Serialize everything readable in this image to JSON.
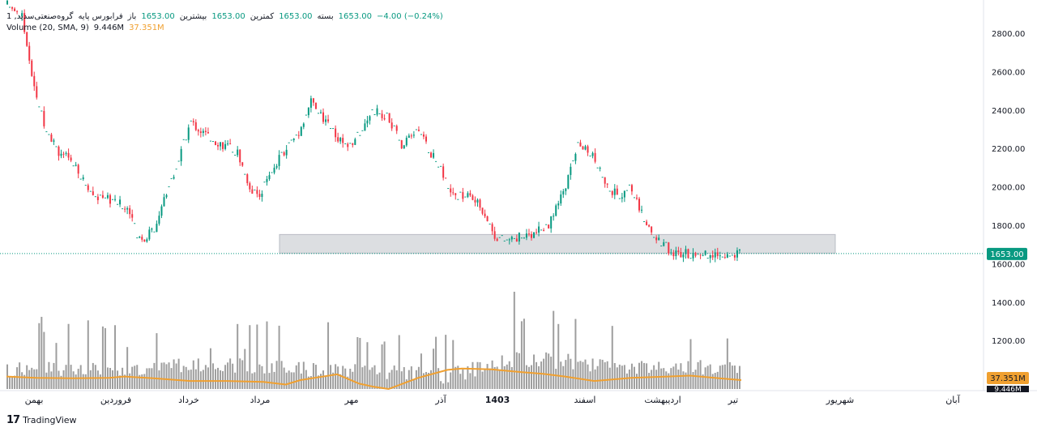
{
  "legend": {
    "symbol": "گروه‌صنعتی‌سدید, 1",
    "exchange": "فرابورس پایه",
    "open_label": "باز",
    "open_value": "1653.00",
    "high_label": "بیشترین",
    "high_value": "1653.00",
    "low_label": "کمترین",
    "low_value": "1653.00",
    "close_label": "بسته",
    "close_value": "1653.00",
    "change": "−4.00 (−0.24%)",
    "volume_label": "Volume (20, SMA, 9)",
    "volume_value": "9.446M",
    "volume_sma_value": "37.351M"
  },
  "brand": {
    "name": "TradingView"
  },
  "colors": {
    "up": "#089981",
    "down": "#f23645",
    "sma": "#f0a030",
    "volume": "#9e9e9e",
    "zone": "#d8dade"
  },
  "chart_data": {
    "type": "candlestick",
    "y_axis_ticks": [
      "2800.00",
      "2600.00",
      "2400.00",
      "2200.00",
      "2000.00",
      "1800.00",
      "1600.00",
      "1400.00",
      "1200.00"
    ],
    "y_tick_values": [
      2800,
      2600,
      2400,
      2200,
      2000,
      1800,
      1600,
      1400,
      1200
    ],
    "ylim": [
      1120,
      2950
    ],
    "last_price_label": "1653.00",
    "last_price": 1653,
    "volume_label": "37.351M",
    "volume_label_2": "9.446M",
    "x_axis_labels": [
      "بهمن",
      "فروردین",
      "خرداد",
      "مرداد",
      "مهر",
      "آذر",
      "1403",
      "اسفند",
      "اردیبهشت",
      "تیر",
      "شهریور",
      "آبان"
    ],
    "support_zone": {
      "low": 1655,
      "high": 1752
    },
    "price_path": [
      [
        0.0,
        2950
      ],
      [
        0.02,
        2900
      ],
      [
        0.03,
        2640
      ],
      [
        0.05,
        2340
      ],
      [
        0.07,
        2180
      ],
      [
        0.085,
        2150
      ],
      [
        0.1,
        2050
      ],
      [
        0.12,
        1950
      ],
      [
        0.145,
        1930
      ],
      [
        0.165,
        1890
      ],
      [
        0.18,
        1715
      ],
      [
        0.2,
        1780
      ],
      [
        0.215,
        1950
      ],
      [
        0.235,
        2150
      ],
      [
        0.25,
        2340
      ],
      [
        0.265,
        2290
      ],
      [
        0.285,
        2240
      ],
      [
        0.3,
        2210
      ],
      [
        0.315,
        2180
      ],
      [
        0.33,
        2000
      ],
      [
        0.345,
        1960
      ],
      [
        0.36,
        2080
      ],
      [
        0.38,
        2200
      ],
      [
        0.4,
        2300
      ],
      [
        0.415,
        2450
      ],
      [
        0.43,
        2360
      ],
      [
        0.45,
        2260
      ],
      [
        0.465,
        2200
      ],
      [
        0.48,
        2280
      ],
      [
        0.5,
        2400
      ],
      [
        0.52,
        2360
      ],
      [
        0.54,
        2210
      ],
      [
        0.56,
        2300
      ],
      [
        0.57,
        2230
      ],
      [
        0.59,
        2100
      ],
      [
        0.61,
        1950
      ],
      [
        0.63,
        1960
      ],
      [
        0.65,
        1880
      ],
      [
        0.665,
        1750
      ],
      [
        0.68,
        1720
      ],
      [
        0.7,
        1740
      ],
      [
        0.72,
        1760
      ],
      [
        0.74,
        1800
      ],
      [
        0.76,
        1980
      ],
      [
        0.78,
        2220
      ],
      [
        0.8,
        2150
      ],
      [
        0.82,
        2000
      ],
      [
        0.84,
        1940
      ],
      [
        0.85,
        2030
      ],
      [
        0.865,
        1870
      ],
      [
        0.88,
        1760
      ],
      [
        0.895,
        1700
      ],
      [
        0.91,
        1660
      ],
      [
        0.915,
        1653
      ]
    ],
    "volume_profile": [
      [
        0.0,
        0.35
      ],
      [
        0.1,
        0.45
      ],
      [
        0.2,
        0.5
      ],
      [
        0.3,
        0.55
      ],
      [
        0.4,
        0.45
      ],
      [
        0.45,
        0.3
      ],
      [
        0.5,
        0.35
      ],
      [
        0.55,
        0.25
      ],
      [
        0.6,
        0.15
      ],
      [
        0.65,
        0.5
      ],
      [
        0.7,
        0.8
      ],
      [
        0.75,
        0.7
      ],
      [
        0.8,
        0.6
      ],
      [
        0.85,
        0.45
      ],
      [
        0.9,
        0.5
      ],
      [
        1.0,
        0.4
      ]
    ],
    "sma_path": [
      [
        0.0,
        0.28
      ],
      [
        0.04,
        0.25
      ],
      [
        0.09,
        0.24
      ],
      [
        0.14,
        0.25
      ],
      [
        0.16,
        0.28
      ],
      [
        0.2,
        0.24
      ],
      [
        0.25,
        0.18
      ],
      [
        0.3,
        0.18
      ],
      [
        0.35,
        0.16
      ],
      [
        0.38,
        0.1
      ],
      [
        0.4,
        0.2
      ],
      [
        0.45,
        0.33
      ],
      [
        0.48,
        0.12
      ],
      [
        0.5,
        0.05
      ],
      [
        0.52,
        0.0
      ],
      [
        0.56,
        0.25
      ],
      [
        0.6,
        0.43
      ],
      [
        0.62,
        0.46
      ],
      [
        0.66,
        0.44
      ],
      [
        0.7,
        0.38
      ],
      [
        0.73,
        0.34
      ],
      [
        0.76,
        0.28
      ],
      [
        0.8,
        0.18
      ],
      [
        0.85,
        0.25
      ],
      [
        0.9,
        0.28
      ],
      [
        0.93,
        0.3
      ],
      [
        0.97,
        0.24
      ],
      [
        1.0,
        0.2
      ]
    ]
  }
}
